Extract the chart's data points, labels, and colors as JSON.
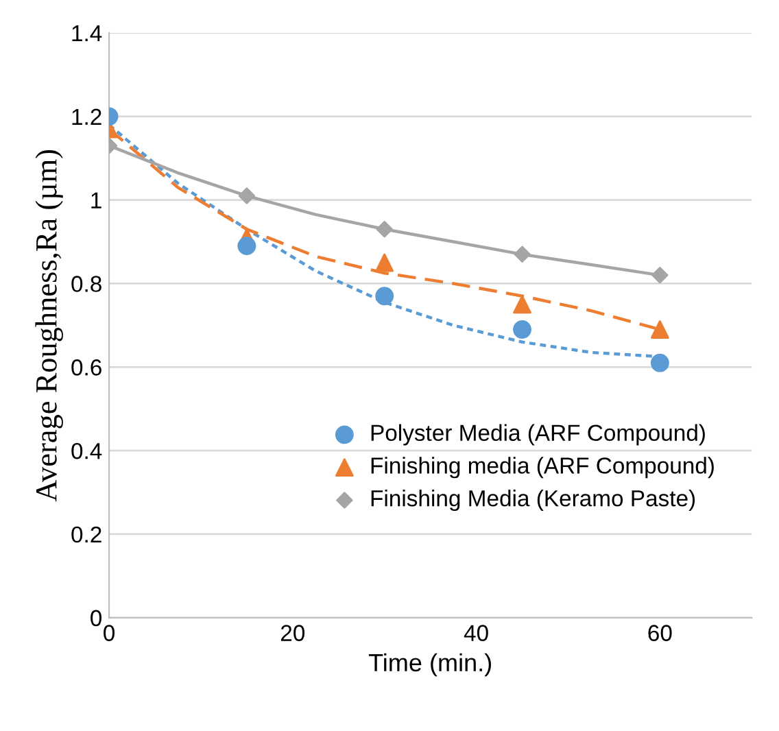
{
  "chart_data": {
    "type": "scatter",
    "xlabel": "Time (min.)",
    "ylabel": "Average Roughness,Ra (µm)",
    "xlim": [
      0,
      70
    ],
    "xticks": [
      0,
      20,
      40,
      60
    ],
    "ylim": [
      0,
      1.4
    ],
    "yticks": [
      0,
      0.2,
      0.4,
      0.6,
      0.8,
      1,
      1.2,
      1.4
    ],
    "grid": "y",
    "legend": "bottom right",
    "x": [
      0,
      15,
      30,
      45,
      60
    ],
    "series": [
      {
        "name": "Polyster Media (ARF Compound)",
        "color": "#5b9bd5",
        "marker": "circle",
        "values": [
          1.2,
          0.89,
          0.77,
          0.69,
          0.61
        ]
      },
      {
        "name": "Finishing media (ARF Compound)",
        "color": "#ed7d31",
        "marker": "triangle",
        "values": [
          1.17,
          0.91,
          0.85,
          0.75,
          0.69
        ]
      },
      {
        "name": "Finishing Media (Keramo Paste)",
        "color": "#a5a5a5",
        "marker": "diamond",
        "values": [
          1.13,
          1.01,
          0.93,
          0.87,
          0.82
        ]
      },
      {
        "type": "line",
        "color": "#5b9bd5",
        "line_style": "dotted",
        "x": [
          0,
          7.5,
          15,
          22.5,
          30,
          37.5,
          45,
          52.5,
          60
        ],
        "values": [
          1.18,
          1.04,
          0.93,
          0.83,
          0.755,
          0.7,
          0.66,
          0.635,
          0.625
        ]
      },
      {
        "type": "line",
        "color": "#ed7d31",
        "line_style": "dashed",
        "x": [
          0,
          7.5,
          15,
          22.5,
          30,
          37.5,
          45,
          52.5,
          60
        ],
        "values": [
          1.17,
          1.03,
          0.93,
          0.865,
          0.825,
          0.8,
          0.77,
          0.735,
          0.69
        ]
      },
      {
        "type": "line",
        "color": "#a5a5a5",
        "line_style": "solid",
        "x": [
          0,
          7.5,
          15,
          22.5,
          30,
          37.5,
          45,
          52.5,
          60
        ],
        "values": [
          1.13,
          1.065,
          1.01,
          0.965,
          0.93,
          0.9,
          0.87,
          0.845,
          0.82
        ]
      }
    ]
  }
}
